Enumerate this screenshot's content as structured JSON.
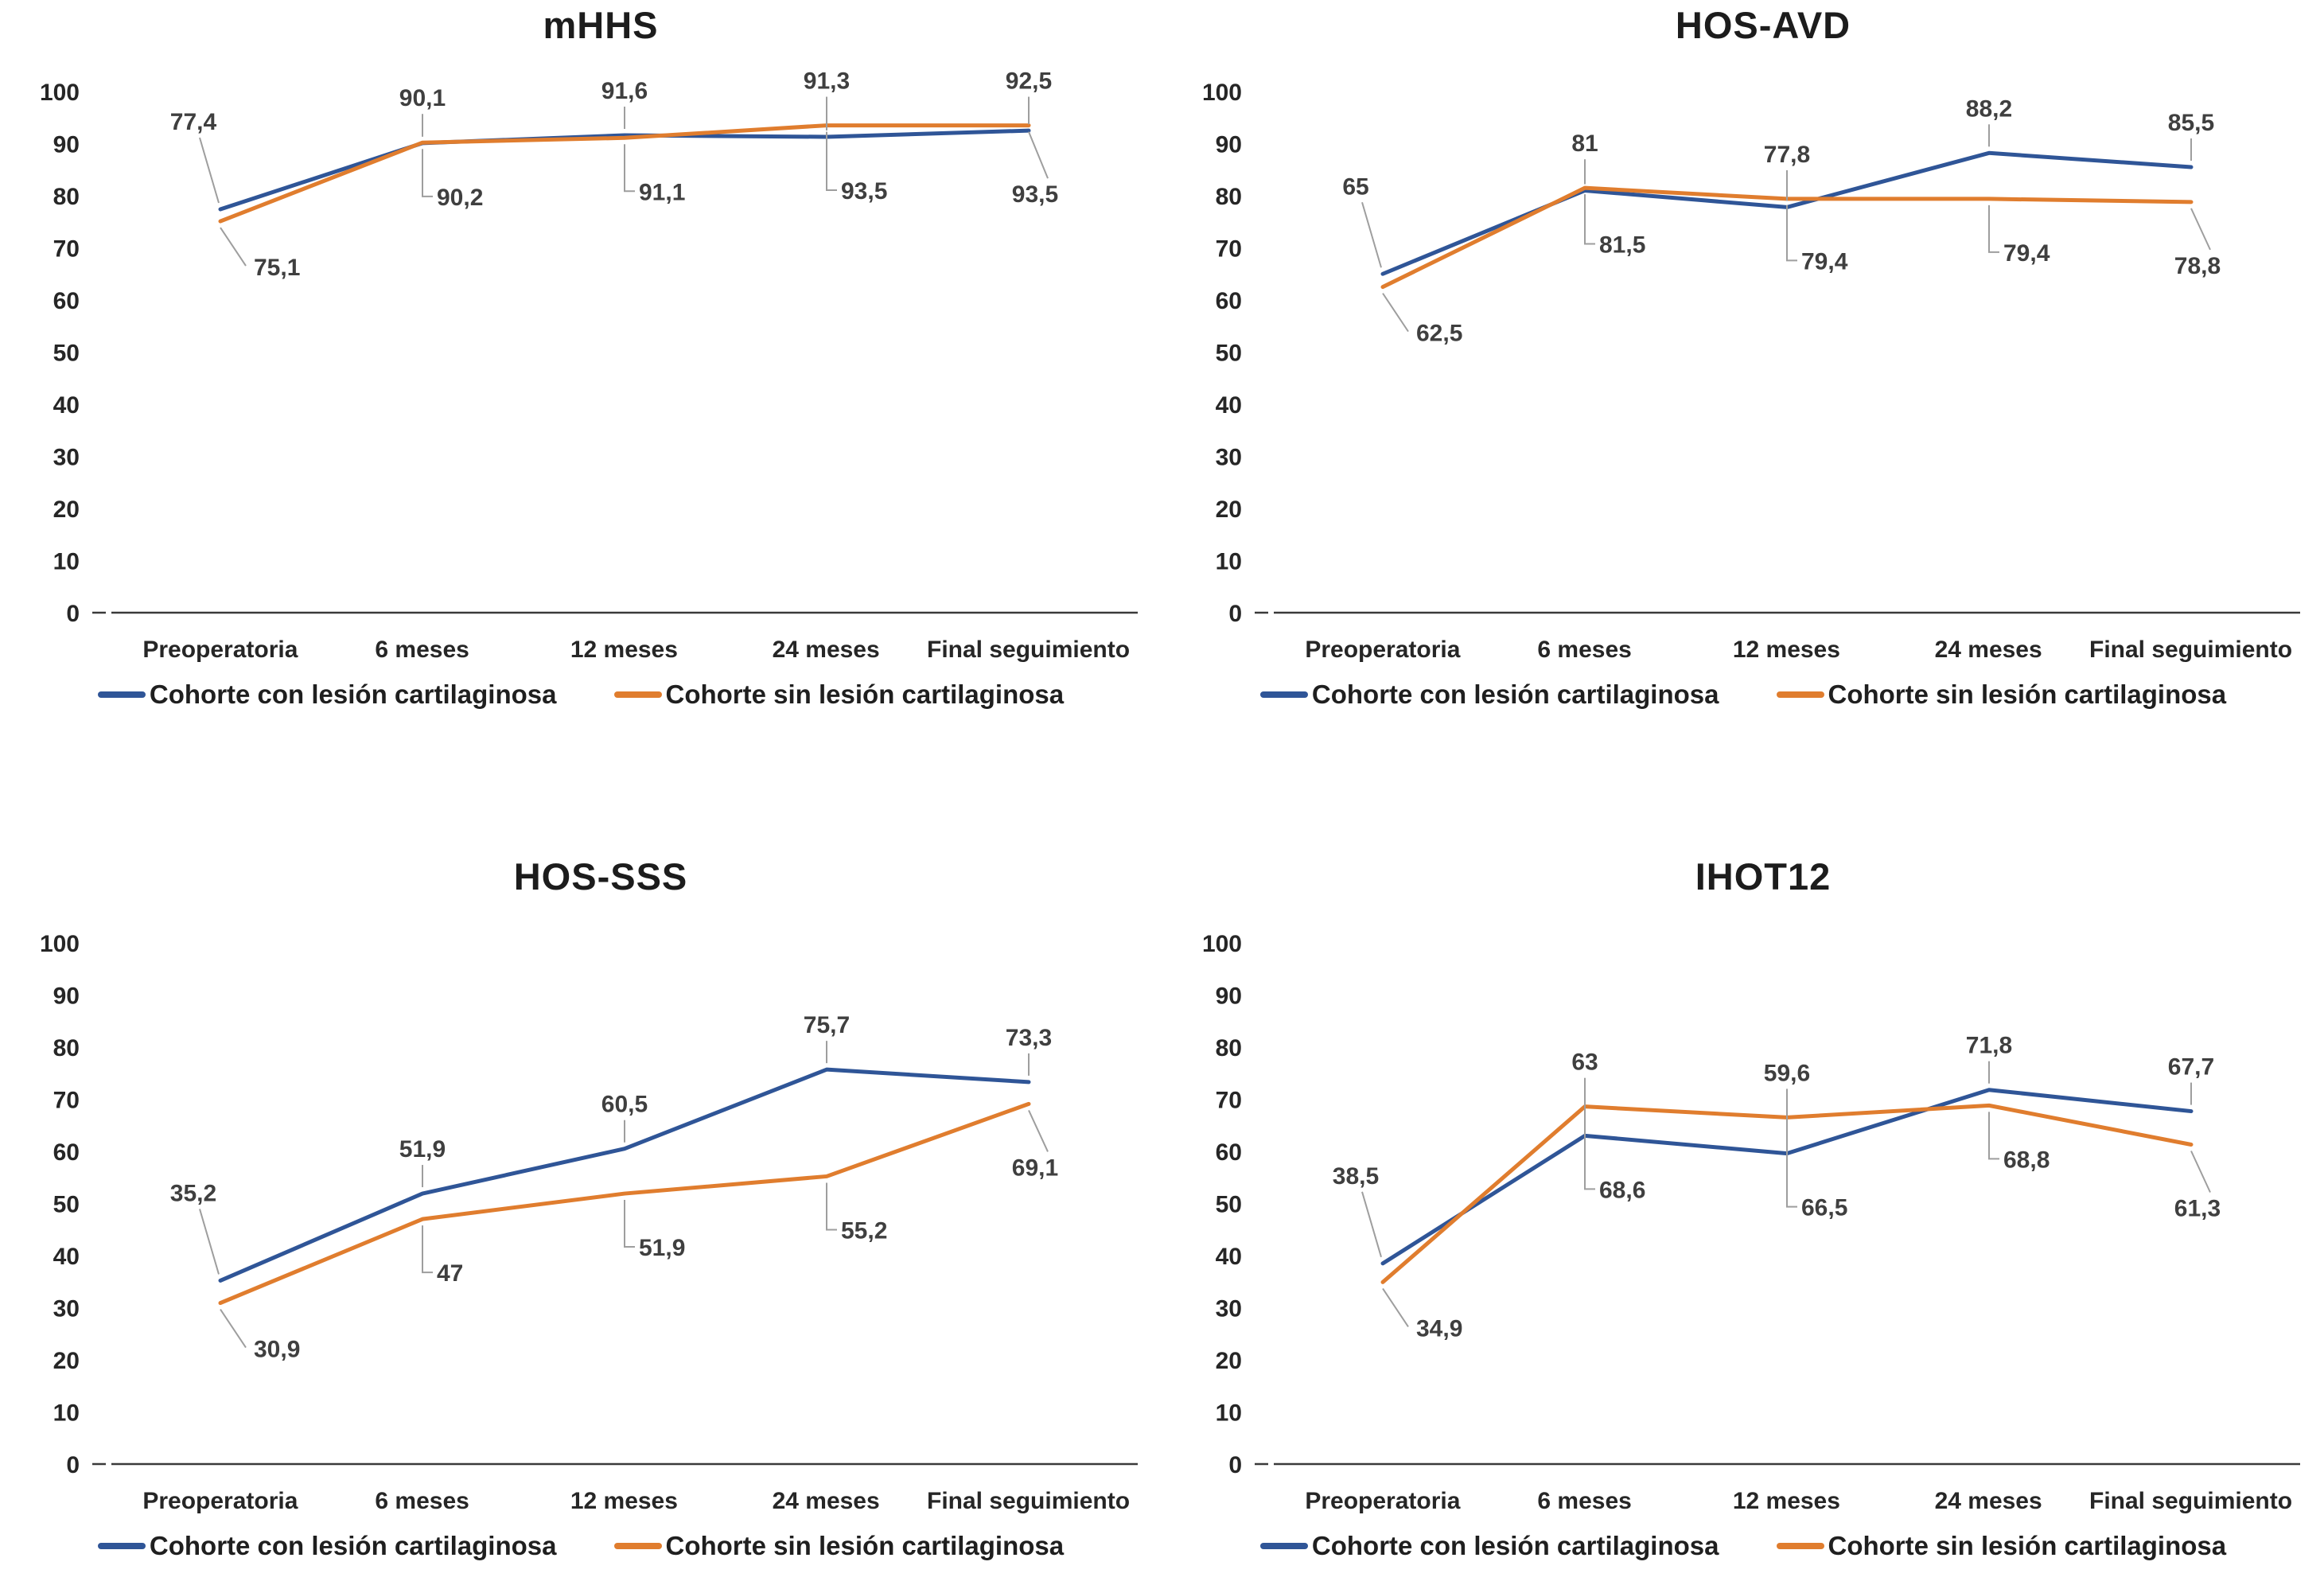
{
  "page": {
    "background": "#ffffff"
  },
  "colors": {
    "series_con": "#2F5597",
    "series_sin": "#E07D2E",
    "leader_line": "#9e9e9e",
    "axis_line": "#3a3a3a",
    "tick_text": "#262626",
    "data_label_text": "#3f3f3f",
    "title_text": "#1c1c1c"
  },
  "categories": [
    "Preoperatoria",
    "6 meses",
    "12 meses",
    "24 meses",
    "Final seguimiento"
  ],
  "legend": {
    "con_label": "Cohorte con lesión cartilaginosa",
    "sin_label": "Cohorte sin lesión cartilaginosa"
  },
  "y_axis": {
    "min": 0,
    "max": 100,
    "step": 10,
    "ticks": [
      "0",
      "10",
      "20",
      "30",
      "40",
      "50",
      "60",
      "70",
      "80",
      "90",
      "100"
    ]
  },
  "chart_data": [
    {
      "type": "line",
      "title": "mHHS",
      "x": [
        "Preoperatoria",
        "6 meses",
        "12 meses",
        "24 meses",
        "Final seguimiento"
      ],
      "ylim": [
        0,
        100
      ],
      "grid": false,
      "legend_position": "bottom",
      "series": [
        {
          "name": "Cohorte con lesión cartilaginosa",
          "color": "#2F5597",
          "values": [
            77.4,
            90.1,
            91.6,
            91.3,
            92.5
          ],
          "labels": [
            "77,4",
            "90,1",
            "91,6",
            "91,3",
            "92,5"
          ]
        },
        {
          "name": "Cohorte sin lesión cartilaginosa",
          "color": "#E07D2E",
          "values": [
            75.1,
            90.2,
            91.1,
            93.5,
            93.5
          ],
          "labels": [
            "75,1",
            "90,2",
            "91,1",
            "93,5",
            "93,5"
          ]
        }
      ]
    },
    {
      "type": "line",
      "title": "HOS-AVD",
      "x": [
        "Preoperatoria",
        "6 meses",
        "12 meses",
        "24 meses",
        "Final seguimiento"
      ],
      "ylim": [
        0,
        100
      ],
      "grid": false,
      "legend_position": "bottom",
      "series": [
        {
          "name": "Cohorte con lesión cartilaginosa",
          "color": "#2F5597",
          "values": [
            65,
            81,
            77.8,
            88.2,
            85.5
          ],
          "labels": [
            "65",
            "81",
            "77,8",
            "88,2",
            "85,5"
          ]
        },
        {
          "name": "Cohorte sin lesión cartilaginosa",
          "color": "#E07D2E",
          "values": [
            62.5,
            81.5,
            79.4,
            79.4,
            78.8
          ],
          "labels": [
            "62,5",
            "81,5",
            "79,4",
            "79,4",
            "78,8"
          ]
        }
      ]
    },
    {
      "type": "line",
      "title": "HOS-SSS",
      "x": [
        "Preoperatoria",
        "6 meses",
        "12 meses",
        "24 meses",
        "Final seguimiento"
      ],
      "ylim": [
        0,
        100
      ],
      "grid": false,
      "legend_position": "bottom",
      "series": [
        {
          "name": "Cohorte con lesión cartilaginosa",
          "color": "#2F5597",
          "values": [
            35.2,
            51.9,
            60.5,
            75.7,
            73.3
          ],
          "labels": [
            "35,2",
            "51,9",
            "60,5",
            "75,7",
            "73,3"
          ]
        },
        {
          "name": "Cohorte sin lesión cartilaginosa",
          "color": "#E07D2E",
          "values": [
            30.9,
            47,
            51.9,
            55.2,
            69.1
          ],
          "labels": [
            "30,9",
            "47",
            "51,9",
            "55,2",
            "69,1"
          ]
        }
      ]
    },
    {
      "type": "line",
      "title": "IHOT12",
      "x": [
        "Preoperatoria",
        "6 meses",
        "12 meses",
        "24 meses",
        "Final seguimiento"
      ],
      "ylim": [
        0,
        100
      ],
      "grid": false,
      "legend_position": "bottom",
      "series": [
        {
          "name": "Cohorte con lesión cartilaginosa",
          "color": "#2F5597",
          "values": [
            38.5,
            63,
            59.6,
            71.8,
            67.7
          ],
          "labels": [
            "38,5",
            "63",
            "59,6",
            "71,8",
            "67,7"
          ]
        },
        {
          "name": "Cohorte sin lesión cartilaginosa",
          "color": "#E07D2E",
          "values": [
            34.9,
            68.6,
            66.5,
            68.8,
            61.3
          ],
          "labels": [
            "34,9",
            "68,6",
            "66,5",
            "68,8",
            "61,3"
          ]
        }
      ]
    }
  ]
}
